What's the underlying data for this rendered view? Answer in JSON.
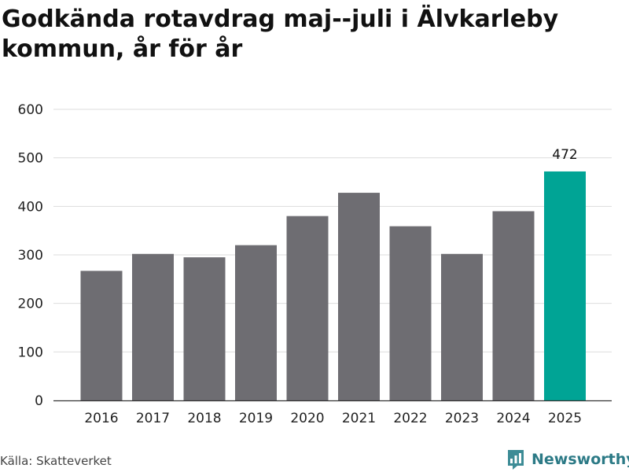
{
  "title": "Godkända rotavdrag maj--juli i Älvkarleby kommun, år för år",
  "source": "Källa: Skatteverket",
  "brand": {
    "name": "Newsworthy",
    "icon": "newsworthy-logo-icon",
    "color": "#2c7a86"
  },
  "chart_data": {
    "type": "bar",
    "title": "Godkända rotavdrag maj--juli i Älvkarleby kommun, år för år",
    "xlabel": "",
    "ylabel": "",
    "categories": [
      "2016",
      "2017",
      "2018",
      "2019",
      "2020",
      "2021",
      "2022",
      "2023",
      "2024",
      "2025"
    ],
    "values": [
      267,
      302,
      295,
      320,
      380,
      428,
      359,
      302,
      390,
      472
    ],
    "ylim": [
      0,
      600
    ],
    "yticks": [
      "0",
      "100",
      "200",
      "300",
      "400",
      "500",
      "600"
    ],
    "grid": true,
    "legend": "none",
    "highlight": {
      "category": "2025",
      "label": "472"
    },
    "colors": {
      "bar": "#6e6d72",
      "highlight": "#00a495",
      "grid": "#dddddd"
    }
  }
}
